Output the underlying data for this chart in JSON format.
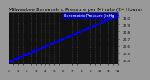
{
  "title": "Milwaukee Barometric Pressure",
  "subtitle": "per Minute",
  "subtitle2": "(24 Hours)",
  "bg_color": "#111111",
  "plot_bg_color": "#111111",
  "fig_bg_color": "#888888",
  "dot_color": "#0000ff",
  "dot_size": 0.8,
  "grid_color": "#666666",
  "grid_style": ":",
  "x_min": 0,
  "x_max": 1440,
  "y_min": 29.35,
  "y_max": 30.08,
  "y_ticks": [
    29.4,
    29.5,
    29.6,
    29.7,
    29.8,
    29.9,
    30.0
  ],
  "y_tick_labels": [
    "29.4",
    "29.5",
    "29.6",
    "29.7",
    "29.8",
    "29.9",
    "30.0"
  ],
  "x_ticks": [
    0,
    60,
    120,
    180,
    240,
    300,
    360,
    420,
    480,
    540,
    600,
    660,
    720,
    780,
    840,
    900,
    960,
    1020,
    1080,
    1140,
    1200,
    1260,
    1320,
    1380,
    1440
  ],
  "x_tick_labels": [
    "0",
    "",
    "1",
    "",
    "2",
    "",
    "3",
    "",
    "4",
    "",
    "5",
    "",
    "6",
    "",
    "7",
    "",
    "8",
    "",
    "9",
    "",
    "10",
    "",
    "11",
    "",
    "12"
  ],
  "n_points": 1440,
  "start_pressure": 29.38,
  "end_pressure": 30.03,
  "legend_label": "Barometric Pressure (inHg)",
  "legend_color": "#0000cc",
  "title_color": "#000000",
  "title_fontsize": 4.5,
  "tick_fontsize": 3.0,
  "legend_fontsize": 3.5,
  "outer_bg": "#999999"
}
